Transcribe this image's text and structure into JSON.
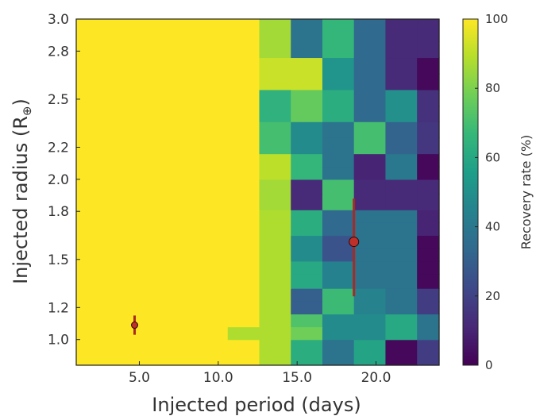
{
  "chart_data": {
    "type": "heatmap",
    "title": "",
    "xlabel": "Injected period (days)",
    "ylabel_main": "Injected radius (R",
    "ylabel_sub": "⊕",
    "ylabel_close": ")",
    "xlim": [
      1,
      24
    ],
    "ylim": [
      0.84,
      3.0
    ],
    "x_ticks": [
      5,
      10,
      15,
      20
    ],
    "x_tick_labels": [
      "5.0",
      "10.0",
      "15.0",
      "20.0"
    ],
    "y_ticks": [
      1.0,
      1.2,
      1.5,
      1.8,
      2.0,
      2.2,
      2.5,
      2.8,
      3.0
    ],
    "y_tick_labels": [
      "1.0",
      "1.2",
      "1.5",
      "1.8",
      "2.0",
      "2.2",
      "2.5",
      "2.8",
      "3.0"
    ],
    "x_bin_edges": [
      1,
      10.6,
      12.6,
      14.6,
      16.6,
      18.6,
      20.6,
      22.6,
      24
    ],
    "y_bin_edges": [
      0.84,
      1.0,
      1.08,
      1.16,
      1.24,
      1.32,
      1.41,
      1.49,
      1.57,
      1.65,
      1.73,
      1.81,
      1.91,
      2.0,
      2.08,
      2.16,
      2.26,
      2.36,
      2.46,
      2.56,
      2.66,
      2.76,
      2.86,
      3.0
    ],
    "colormap": "viridis",
    "z_range": [
      0,
      100
    ],
    "values": [
      [
        100,
        100,
        88,
        62,
        38,
        58,
        2,
        18
      ],
      [
        100,
        88,
        88,
        78,
        48,
        48,
        60,
        38
      ],
      [
        100,
        100,
        88,
        72,
        48,
        48,
        60,
        38
      ],
      [
        100,
        100,
        88,
        30,
        68,
        45,
        38,
        18
      ],
      [
        100,
        100,
        88,
        30,
        68,
        45,
        38,
        18
      ],
      [
        100,
        100,
        88,
        60,
        44,
        38,
        38,
        2
      ],
      [
        100,
        100,
        88,
        60,
        44,
        38,
        38,
        2
      ],
      [
        100,
        100,
        88,
        48,
        26,
        38,
        38,
        2
      ],
      [
        100,
        100,
        88,
        48,
        26,
        38,
        38,
        2
      ],
      [
        100,
        100,
        88,
        62,
        34,
        38,
        38,
        10
      ],
      [
        100,
        100,
        88,
        62,
        34,
        38,
        38,
        10
      ],
      [
        100,
        100,
        86,
        12,
        70,
        12,
        12,
        12
      ],
      [
        100,
        100,
        86,
        12,
        70,
        12,
        12,
        12
      ],
      [
        100,
        100,
        90,
        66,
        38,
        10,
        40,
        2
      ],
      [
        100,
        100,
        90,
        66,
        38,
        10,
        40,
        2
      ],
      [
        100,
        100,
        70,
        48,
        38,
        70,
        32,
        16
      ],
      [
        100,
        100,
        70,
        48,
        38,
        70,
        32,
        16
      ],
      [
        100,
        100,
        64,
        76,
        62,
        34,
        50,
        14
      ],
      [
        100,
        100,
        64,
        76,
        62,
        34,
        50,
        14
      ],
      [
        100,
        100,
        92,
        92,
        52,
        34,
        12,
        2
      ],
      [
        100,
        100,
        92,
        92,
        52,
        34,
        12,
        2
      ],
      [
        100,
        100,
        86,
        38,
        66,
        34,
        12,
        12
      ],
      [
        100,
        100,
        86,
        38,
        66,
        34,
        12,
        12
      ]
    ],
    "points": [
      {
        "x": 4.7,
        "y": 1.09,
        "yerr_low": 0.06,
        "yerr_high": 0.06,
        "marker": "small"
      },
      {
        "x": 18.6,
        "y": 1.61,
        "yerr_low": 0.34,
        "yerr_high": 0.27,
        "marker": "large"
      }
    ],
    "point_color": "#c0302a",
    "errorbar_color": "#a72a24",
    "colorbar": {
      "label": "Recovery rate (%)",
      "ticks": [
        0,
        20,
        40,
        60,
        80,
        100
      ],
      "tick_labels": [
        "0",
        "20",
        "40",
        "60",
        "80",
        "100"
      ]
    }
  }
}
